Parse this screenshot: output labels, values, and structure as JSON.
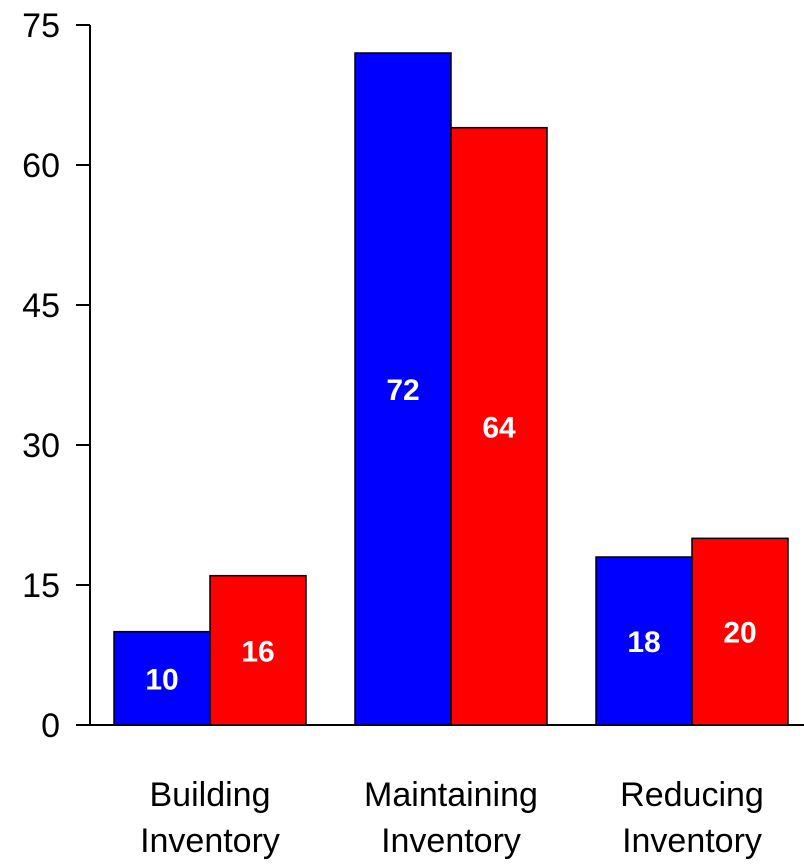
{
  "chart_data": {
    "type": "bar",
    "categories": [
      [
        "Building",
        "Inventory"
      ],
      [
        "Maintaining",
        "Inventory"
      ],
      [
        "Reducing",
        "Inventory"
      ]
    ],
    "series": [
      {
        "values": [
          10,
          72,
          18
        ],
        "color": "#0000ff"
      },
      {
        "values": [
          16,
          64,
          20
        ],
        "color": "#ff0000"
      }
    ],
    "ylim": [
      0,
      75
    ],
    "yticks": [
      0,
      15,
      30,
      45,
      60,
      75
    ],
    "title": "",
    "xlabel": "",
    "ylabel": "",
    "grid": false,
    "legend": "none"
  }
}
